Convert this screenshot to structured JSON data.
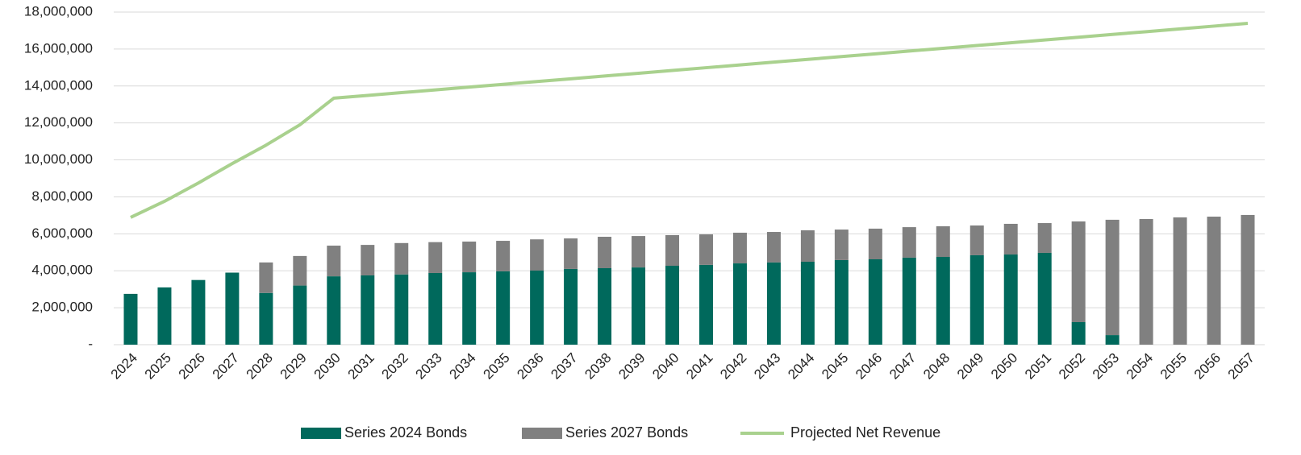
{
  "chart_data": {
    "type": "stacked-bar-line",
    "categories": [
      "2024",
      "2025",
      "2026",
      "2027",
      "2028",
      "2029",
      "2030",
      "2031",
      "2032",
      "2033",
      "2034",
      "2035",
      "2036",
      "2037",
      "2038",
      "2039",
      "2040",
      "2041",
      "2042",
      "2043",
      "2044",
      "2045",
      "2046",
      "2047",
      "2048",
      "2049",
      "2050",
      "2051",
      "2052",
      "2053",
      "2054",
      "2055",
      "2056",
      "2057"
    ],
    "series": [
      {
        "name": "Series 2024 Bonds",
        "type": "bar",
        "color": "#00695c",
        "values": [
          2750000,
          3100000,
          3500000,
          3900000,
          2800000,
          3200000,
          3700000,
          3750000,
          3800000,
          3880000,
          3920000,
          3970000,
          4010000,
          4100000,
          4140000,
          4180000,
          4270000,
          4320000,
          4400000,
          4450000,
          4490000,
          4580000,
          4620000,
          4710000,
          4750000,
          4840000,
          4880000,
          4970000,
          1220000,
          520000,
          0,
          0,
          0,
          0
        ]
      },
      {
        "name": "Series 2027 Bonds",
        "type": "bar",
        "color": "#808080",
        "values": [
          0,
          0,
          0,
          0,
          1650000,
          1600000,
          1660000,
          1650000,
          1700000,
          1670000,
          1660000,
          1650000,
          1690000,
          1650000,
          1700000,
          1700000,
          1660000,
          1650000,
          1660000,
          1650000,
          1700000,
          1650000,
          1660000,
          1650000,
          1660000,
          1610000,
          1660000,
          1610000,
          5450000,
          6240000,
          6800000,
          6890000,
          6930000,
          7020000
        ]
      },
      {
        "name": "Projected Net Revenue",
        "type": "line",
        "color": "#a9d18e",
        "values": [
          6890000,
          7760000,
          8750000,
          9800000,
          10800000,
          11900000,
          13340000,
          13490000,
          13640000,
          13790000,
          13940000,
          14090000,
          14240000,
          14390000,
          14540000,
          14690000,
          14840000,
          14990000,
          15140000,
          15290000,
          15440000,
          15590000,
          15740000,
          15890000,
          16040000,
          16190000,
          16340000,
          16490000,
          16640000,
          16790000,
          16940000,
          17090000,
          17240000,
          17390000
        ]
      }
    ],
    "ylim": [
      0,
      18000000
    ],
    "yticks": [
      {
        "value": 0,
        "label": "-"
      },
      {
        "value": 2000000,
        "label": "2,000,000"
      },
      {
        "value": 4000000,
        "label": "4,000,000"
      },
      {
        "value": 6000000,
        "label": "6,000,000"
      },
      {
        "value": 8000000,
        "label": "8,000,000"
      },
      {
        "value": 10000000,
        "label": "10,000,000"
      },
      {
        "value": 12000000,
        "label": "12,000,000"
      },
      {
        "value": 14000000,
        "label": "14,000,000"
      },
      {
        "value": 16000000,
        "label": "16,000,000"
      },
      {
        "value": 18000000,
        "label": "18,000,000"
      }
    ],
    "grid": true,
    "legend": "bottom"
  }
}
